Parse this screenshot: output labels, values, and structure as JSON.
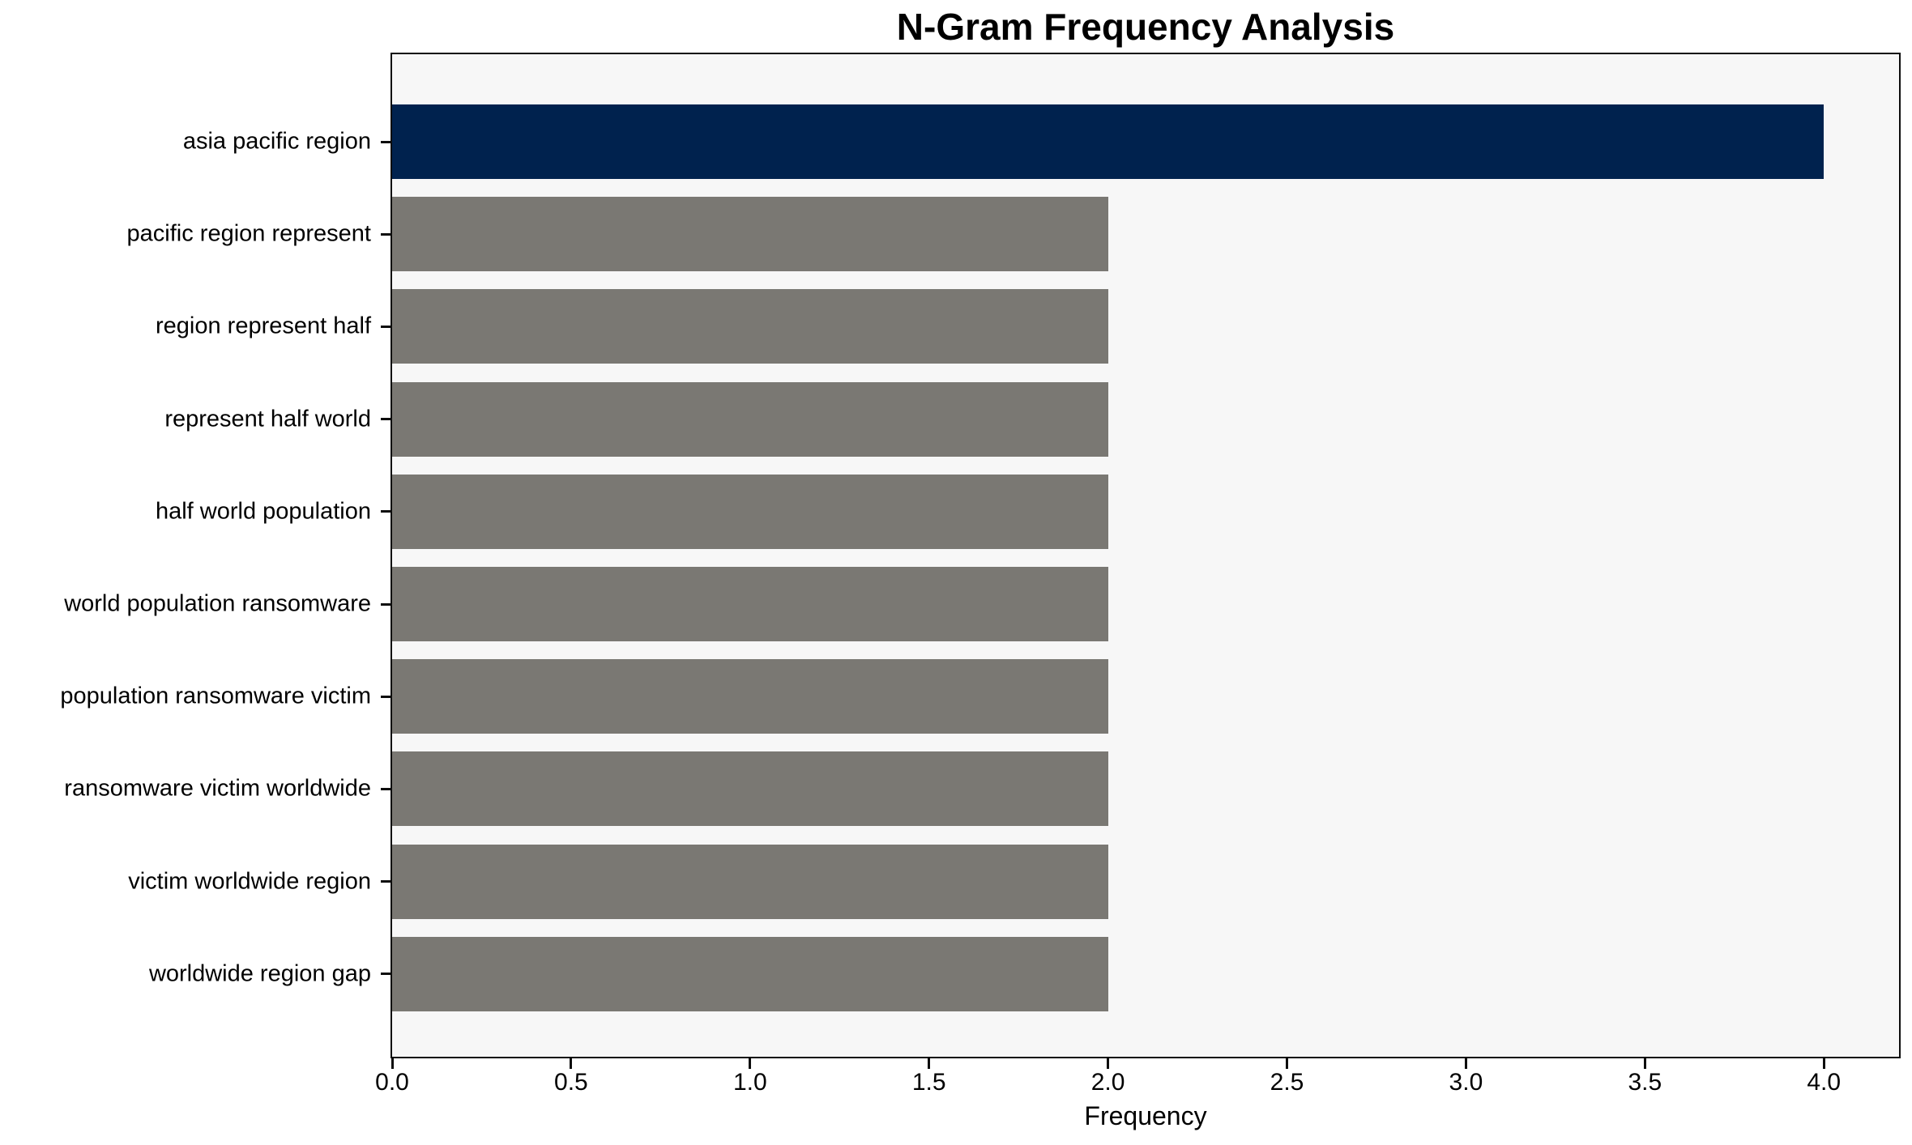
{
  "chart_data": {
    "type": "bar",
    "orientation": "horizontal",
    "title": "N-Gram Frequency Analysis",
    "xlabel": "Frequency",
    "ylabel": "",
    "categories": [
      "asia pacific region",
      "pacific region represent",
      "region represent half",
      "represent half world",
      "half world population",
      "world population ransomware",
      "population ransomware victim",
      "ransomware victim worldwide",
      "victim worldwide region",
      "worldwide region gap"
    ],
    "values": [
      4,
      2,
      2,
      2,
      2,
      2,
      2,
      2,
      2,
      2
    ],
    "bar_colors": [
      "#00224e",
      "#7a7873",
      "#7a7873",
      "#7a7873",
      "#7a7873",
      "#7a7873",
      "#7a7873",
      "#7a7873",
      "#7a7873",
      "#7a7873"
    ],
    "highlight_color": "#00224e",
    "default_bar_color": "#7a7873",
    "plot_background": "#f7f7f7",
    "xlim": [
      0,
      4.21
    ],
    "x_ticks": [
      "0.0",
      "0.5",
      "1.0",
      "1.5",
      "2.0",
      "2.5",
      "3.0",
      "3.5",
      "4.0"
    ],
    "x_tick_values": [
      0,
      0.5,
      1,
      1.5,
      2,
      2.5,
      3,
      3.5,
      4
    ],
    "grid": false,
    "legend": null
  }
}
